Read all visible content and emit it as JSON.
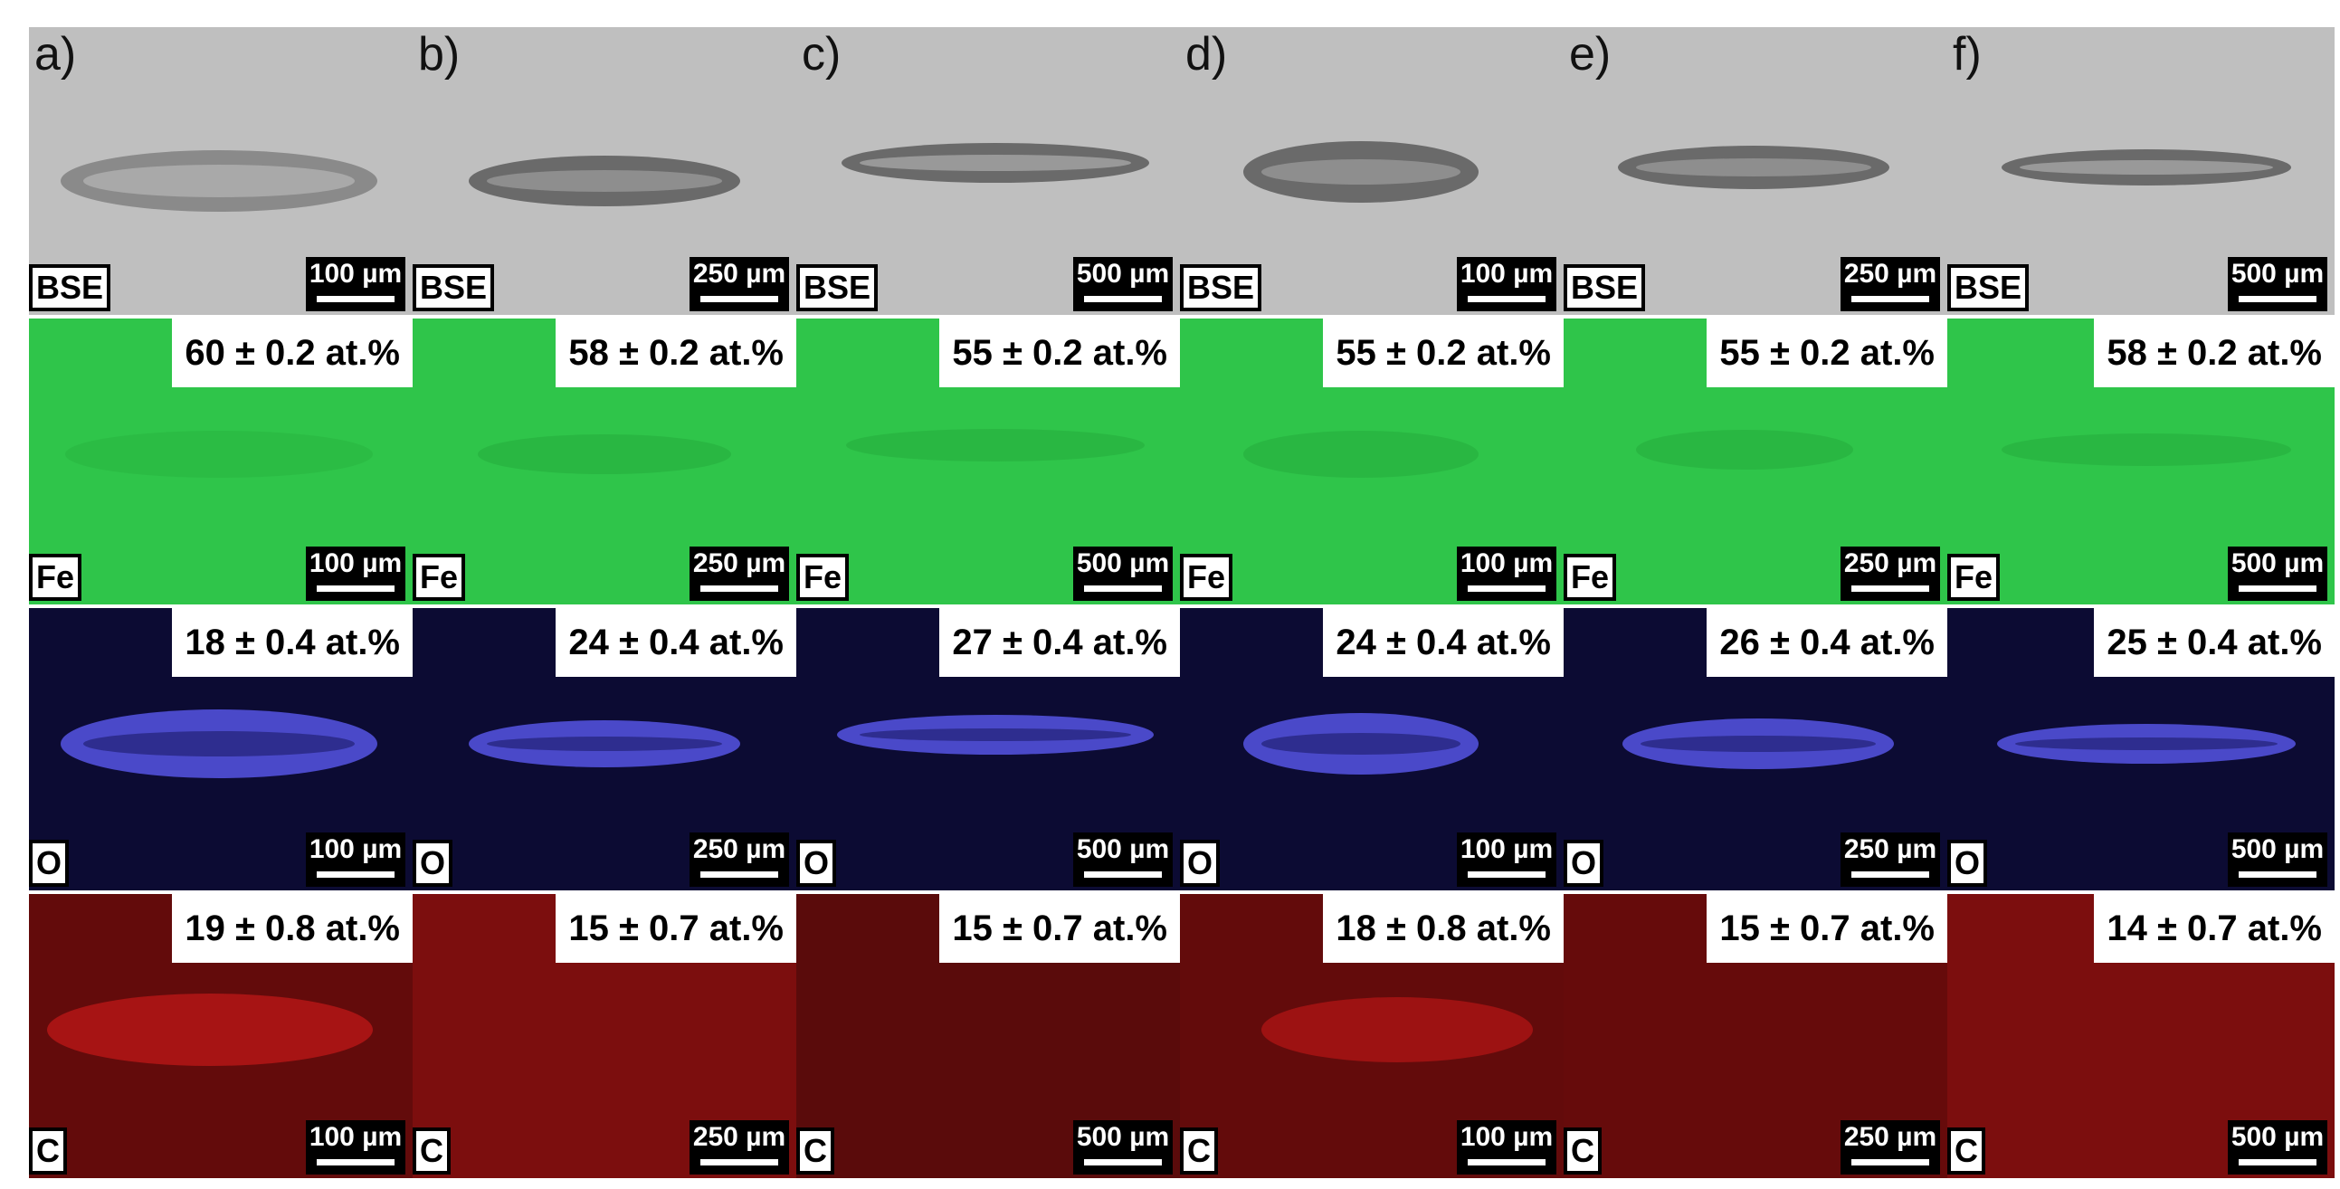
{
  "columns": [
    {
      "letter": "a)",
      "scale": "100 µm",
      "fe": "60 ± 0.2 at.%",
      "o": "18 ± 0.4 at.%",
      "c": "19 ± 0.8 at.%"
    },
    {
      "letter": "b)",
      "scale": "250 µm",
      "fe": "58 ± 0.2 at.%",
      "o": "24 ± 0.4 at.%",
      "c": "15 ± 0.7 at.%"
    },
    {
      "letter": "c)",
      "scale": "500 µm",
      "fe": "55 ± 0.2 at.%",
      "o": "27 ± 0.4 at.%",
      "c": "15 ± 0.7 at.%"
    },
    {
      "letter": "d)",
      "scale": "100 µm",
      "fe": "55 ± 0.2 at.%",
      "o": "24 ± 0.4 at.%",
      "c": "18 ± 0.8 at.%"
    },
    {
      "letter": "e)",
      "scale": "250 µm",
      "fe": "55 ± 0.2 at.%",
      "o": "26 ± 0.4 at.%",
      "c": "15 ± 0.7 at.%"
    },
    {
      "letter": "f)",
      "scale": "500 µm",
      "fe": "58 ± 0.2 at.%",
      "o": "25 ± 0.4 at.%",
      "c": "14 ± 0.7 at.%"
    }
  ],
  "rows": {
    "bse": {
      "label": "BSE",
      "color": "#bfbfbf"
    },
    "fe": {
      "label": "Fe",
      "color": "#2fc54a"
    },
    "o": {
      "label": "O",
      "color": "#0c0b33"
    },
    "c": {
      "label": "C",
      "color": "#3a0606"
    }
  }
}
